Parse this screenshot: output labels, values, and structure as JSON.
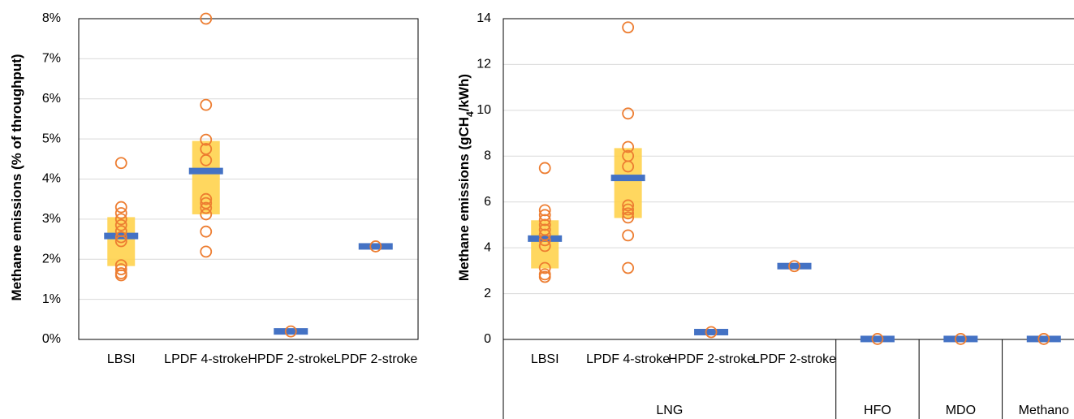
{
  "chart_data": [
    {
      "type": "strip",
      "y_label": "Methane emissions (% of throughput)",
      "categories": [
        "LBSI",
        "LPDF 4-stroke",
        "HPDF 2-stroke",
        "LPDF 2-stroke"
      ],
      "points": [
        [
          4.4,
          3.3,
          3.15,
          3.0,
          2.85,
          2.7,
          2.55,
          2.45,
          1.85,
          1.75,
          1.65,
          1.6
        ],
        [
          8.0,
          5.85,
          4.98,
          4.75,
          4.47,
          3.5,
          3.4,
          3.28,
          3.12,
          2.69,
          2.19
        ],
        [
          0.2
        ],
        [
          2.32
        ]
      ],
      "medians": [
        2.58,
        4.2,
        0.2,
        2.32
      ],
      "box_low": [
        1.83,
        3.12,
        null,
        null
      ],
      "box_high": [
        3.05,
        4.95,
        null,
        null
      ],
      "ylim": [
        0,
        8
      ],
      "yticks": [
        {
          "value": 0,
          "label": "0%"
        },
        {
          "value": 1,
          "label": "1%"
        },
        {
          "value": 2,
          "label": "2%"
        },
        {
          "value": 3,
          "label": "3%"
        },
        {
          "value": 4,
          "label": "4%"
        },
        {
          "value": 5,
          "label": "5%"
        },
        {
          "value": 6,
          "label": "6%"
        },
        {
          "value": 7,
          "label": "7%"
        },
        {
          "value": 8,
          "label": "8%"
        }
      ],
      "grid": true,
      "point_color": "#ed7d31",
      "median_color": "#4472c4",
      "box_color": "#ffd34e"
    },
    {
      "type": "strip",
      "y_label": "Methane emissions (gCH4/kWh)",
      "categories": [
        "LBSI",
        "LPDF 4-stroke",
        "HPDF 2-stroke",
        "LPDF 2-stroke",
        null,
        null,
        null
      ],
      "group_labels": [
        "LNG",
        "HFO",
        "MDO",
        "Methano"
      ],
      "group_sizes": [
        4,
        1,
        1,
        1
      ],
      "points": [
        [
          7.48,
          5.64,
          5.43,
          5.21,
          5.0,
          4.79,
          4.57,
          4.33,
          4.08,
          3.12,
          2.84,
          2.73
        ],
        [
          13.62,
          9.86,
          8.4,
          8.01,
          7.55,
          5.85,
          5.67,
          5.5,
          5.32,
          4.54,
          3.12
        ],
        [
          0.32
        ],
        [
          3.2
        ],
        [
          0.02
        ],
        [
          0.02
        ],
        [
          0.02
        ]
      ],
      "medians": [
        4.4,
        7.05,
        0.32,
        3.2,
        0.02,
        0.02,
        0.02
      ],
      "box_low": [
        3.1,
        5.3,
        null,
        null,
        null,
        null,
        null
      ],
      "box_high": [
        5.2,
        8.35,
        null,
        null,
        null,
        null,
        null
      ],
      "ylim": [
        0,
        14
      ],
      "yticks": [
        0,
        2,
        4,
        6,
        8,
        10,
        12,
        14
      ],
      "grid": true,
      "point_color": "#ed7d31",
      "median_color": "#4472c4",
      "box_color": "#ffd34e"
    }
  ]
}
